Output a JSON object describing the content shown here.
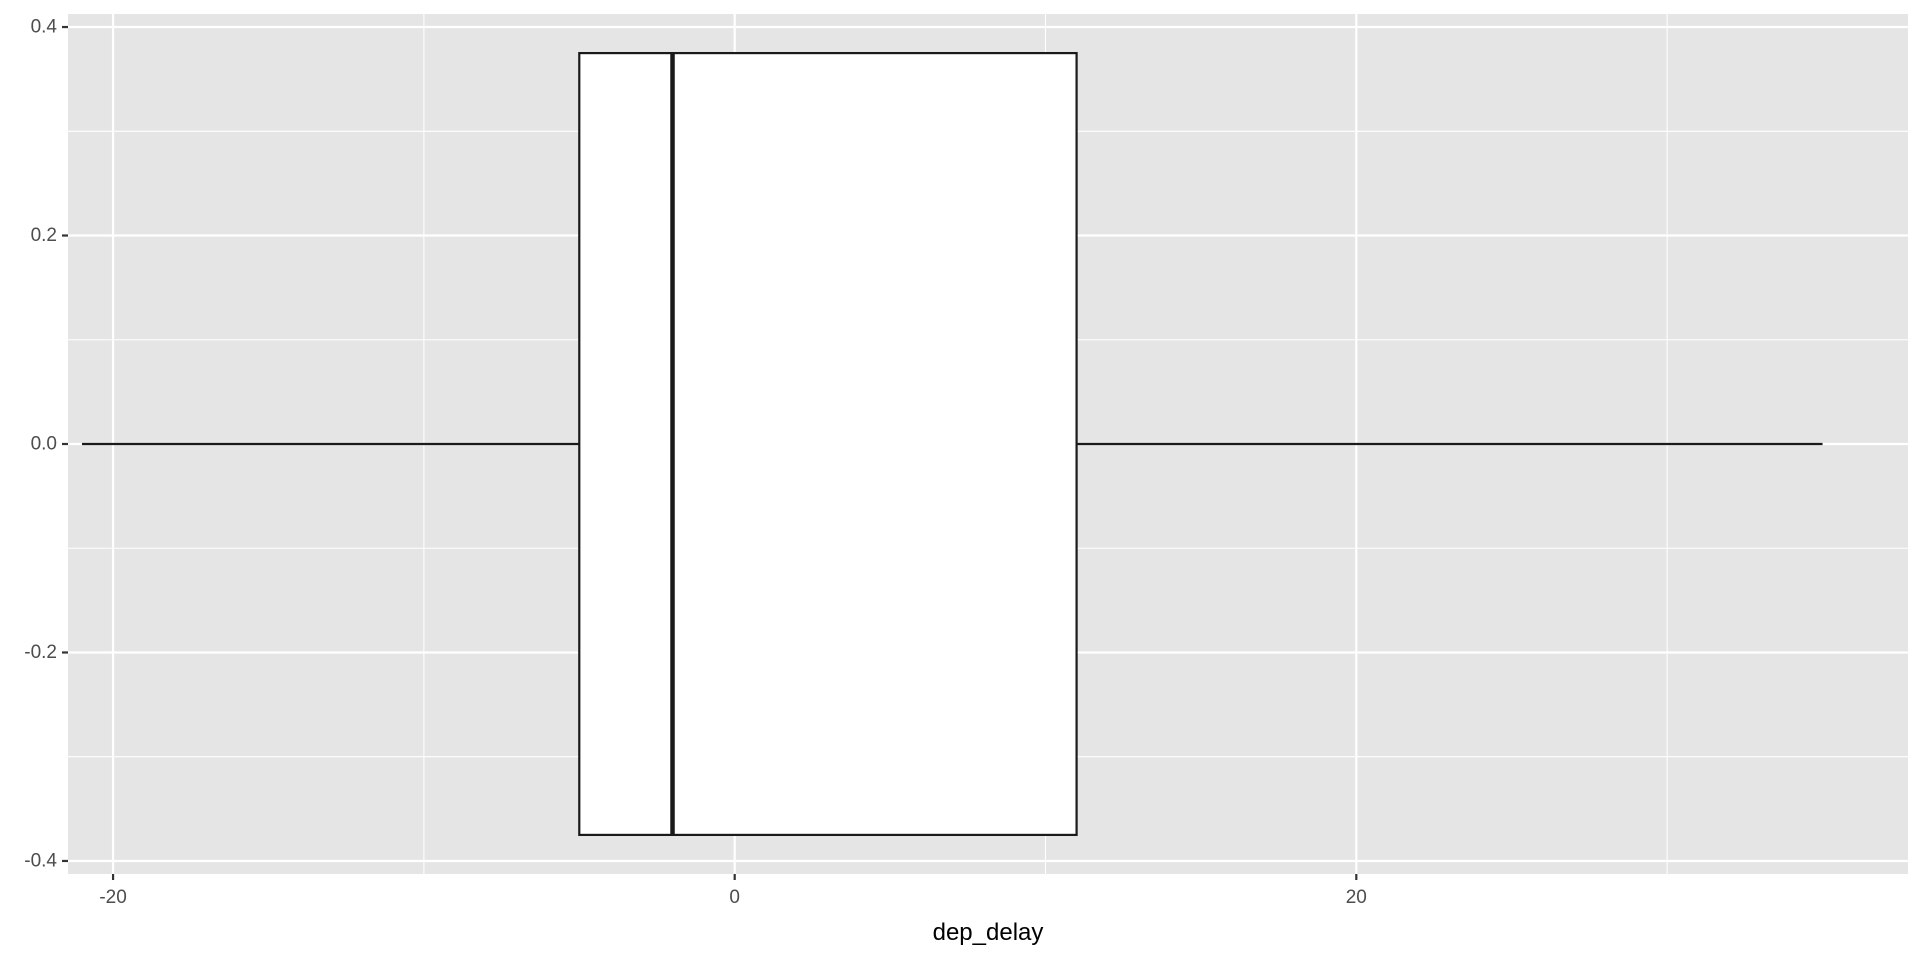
{
  "chart_data": {
    "type": "boxplot",
    "orientation": "horizontal",
    "title": "",
    "xlabel": "dep_delay",
    "ylabel": "",
    "xlim": [
      -21.45,
      37.75
    ],
    "ylim": [
      -0.4125,
      0.4125
    ],
    "x_ticks": [
      {
        "value": -20,
        "label": "-20"
      },
      {
        "value": 0,
        "label": "0"
      },
      {
        "value": 20,
        "label": "20"
      }
    ],
    "x_minor_ticks": [
      -10,
      10,
      30
    ],
    "y_ticks": [
      {
        "value": 0.4,
        "label": "0.4"
      },
      {
        "value": 0.2,
        "label": "0.2"
      },
      {
        "value": 0.0,
        "label": "0.0"
      },
      {
        "value": -0.2,
        "label": "-0.2"
      },
      {
        "value": -0.4,
        "label": "-0.4"
      }
    ],
    "y_minor_ticks": [
      0.3,
      0.1,
      -0.1,
      -0.3
    ],
    "grid": true,
    "legend": "none",
    "box": {
      "whisker_low": -21,
      "q1": -5,
      "median": -2,
      "q3": 11,
      "whisker_high": 35,
      "y_center": 0.0,
      "y_low": -0.375,
      "y_high": 0.375
    },
    "colors": {
      "panel_background": "#e5e5e5",
      "grid": "#ffffff",
      "box_fill": "#ffffff",
      "box_line": "#1a1a1a",
      "tick_text": "#4d4d4d",
      "axis_title": "#000000"
    }
  }
}
